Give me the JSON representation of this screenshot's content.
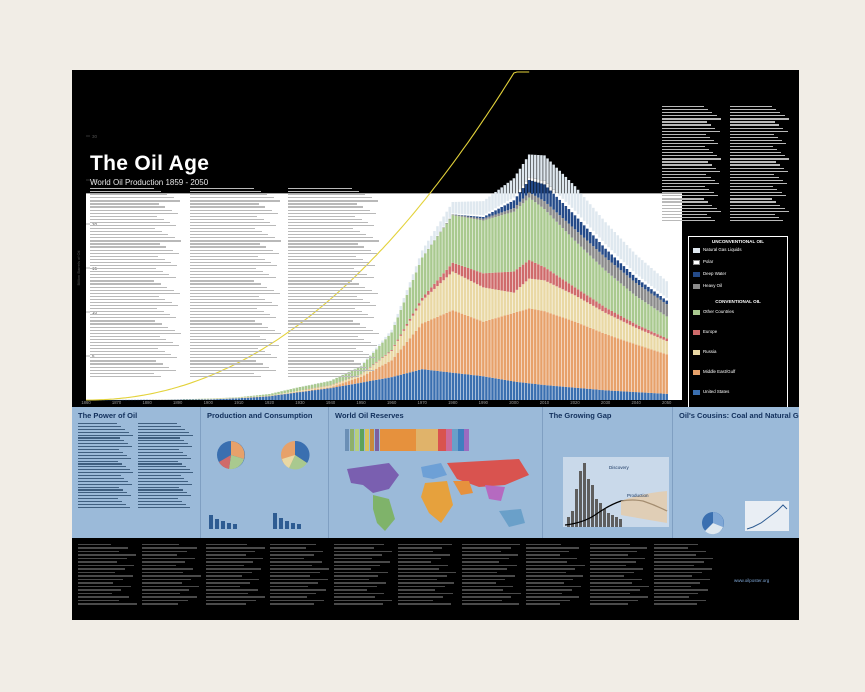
{
  "poster": {
    "title": "The Oil Age",
    "subtitle": "World Oil Production 1859 - 2050",
    "website": "www.oilposter.org"
  },
  "legend": {
    "unconventional_header": "UNCONVENTIONAL OIL",
    "conventional_header": "CONVENTIONAL OIL",
    "unconventional_items": [
      "Natural Gas Liquids",
      "Polar",
      "Deep Water",
      "Heavy Oil"
    ],
    "conventional_items": [
      "Other Countries",
      "Europe",
      "Russia",
      "Middle East/Gulf",
      "United States"
    ]
  },
  "panels": {
    "power": "The Power of Oil",
    "production": "Production and Consumption",
    "reserves": "World Oil Reserves",
    "gap": "The Growing Gap",
    "cousins": "Oil's Cousins: Coal and Natural Gas"
  },
  "gap_labels": {
    "discovery": "Discovery",
    "production": "Production"
  },
  "colors": {
    "united_states": "#3a6fb0",
    "middle_east": "#e7a16a",
    "russia": "#e9d8a4",
    "europe": "#cf6a6a",
    "other_countries": "#a9c98f",
    "heavy_oil": "#8a8a8a",
    "deep_water": "#244a88",
    "polar": "#ffffff",
    "ngl": "#dfe8ef",
    "consumption_line": "#e3d23a",
    "band": "#9bbad9"
  },
  "chart_data": {
    "type": "area",
    "title": "The Oil Age",
    "subtitle": "World Oil Production 1859 - 2050",
    "ylabel": "Billion Barrels of Oil",
    "ylim": [
      0,
      35
    ],
    "y_ticks": [
      5,
      10,
      15,
      20,
      25,
      30
    ],
    "x_ticks": [
      1860,
      1870,
      1880,
      1890,
      1900,
      1910,
      1920,
      1930,
      1940,
      1950,
      1960,
      1970,
      1980,
      1990,
      2000,
      2010,
      2020,
      2030,
      2040,
      2050
    ],
    "x": [
      1860,
      1870,
      1880,
      1890,
      1900,
      1910,
      1920,
      1930,
      1940,
      1950,
      1960,
      1970,
      1980,
      1990,
      2000,
      2005,
      2010,
      2020,
      2030,
      2040,
      2050
    ],
    "series": [
      {
        "name": "United States",
        "values": [
          0.0,
          0.01,
          0.03,
          0.05,
          0.06,
          0.2,
          0.44,
          0.9,
          1.35,
          1.97,
          2.6,
          3.5,
          3.1,
          2.7,
          2.1,
          1.9,
          1.7,
          1.4,
          1.1,
          0.9,
          0.7
        ]
      },
      {
        "name": "Middle East/Gulf",
        "values": [
          0,
          0,
          0,
          0,
          0,
          0,
          0.01,
          0.05,
          0.1,
          0.65,
          1.9,
          5.2,
          7.1,
          6.2,
          7.8,
          8.5,
          8.4,
          7.5,
          6.4,
          5.4,
          4.5
        ]
      },
      {
        "name": "Russia",
        "values": [
          0,
          0,
          0,
          0.03,
          0.08,
          0.07,
          0.03,
          0.13,
          0.22,
          0.27,
          1.08,
          2.6,
          4.4,
          3.9,
          2.3,
          3.4,
          3.5,
          3.0,
          2.4,
          1.9,
          1.5
        ]
      },
      {
        "name": "Europe",
        "values": [
          0,
          0,
          0,
          0,
          0,
          0,
          0,
          0,
          0.01,
          0.04,
          0.1,
          0.3,
          1.0,
          1.6,
          2.4,
          2.1,
          1.5,
          0.9,
          0.6,
          0.4,
          0.3
        ]
      },
      {
        "name": "Other Countries",
        "values": [
          0,
          0,
          0,
          0,
          0.01,
          0.05,
          0.2,
          0.4,
          0.5,
          0.9,
          2.0,
          4.6,
          5.4,
          6.0,
          6.8,
          7.1,
          6.6,
          5.3,
          4.2,
          3.2,
          2.5
        ]
      },
      {
        "name": "Heavy Oil",
        "values": [
          0,
          0,
          0,
          0,
          0,
          0,
          0,
          0,
          0,
          0,
          0,
          0,
          0.1,
          0.2,
          0.4,
          0.6,
          0.9,
          1.3,
          1.5,
          1.5,
          1.4
        ]
      },
      {
        "name": "Deep Water",
        "values": [
          0,
          0,
          0,
          0,
          0,
          0,
          0,
          0,
          0,
          0,
          0,
          0,
          0,
          0.2,
          0.9,
          1.4,
          1.9,
          1.6,
          1.0,
          0.6,
          0.4
        ]
      },
      {
        "name": "Polar",
        "values": [
          0,
          0,
          0,
          0,
          0,
          0,
          0,
          0,
          0,
          0,
          0,
          0,
          0.1,
          0.2,
          0.3,
          0.3,
          0.4,
          0.5,
          0.5,
          0.4,
          0.3
        ]
      },
      {
        "name": "Natural Gas Liquids",
        "values": [
          0,
          0,
          0,
          0,
          0,
          0,
          0,
          0,
          0.02,
          0.1,
          0.3,
          0.8,
          1.3,
          1.6,
          2.2,
          2.6,
          2.9,
          2.8,
          2.5,
          2.2,
          1.9
        ]
      }
    ]
  }
}
